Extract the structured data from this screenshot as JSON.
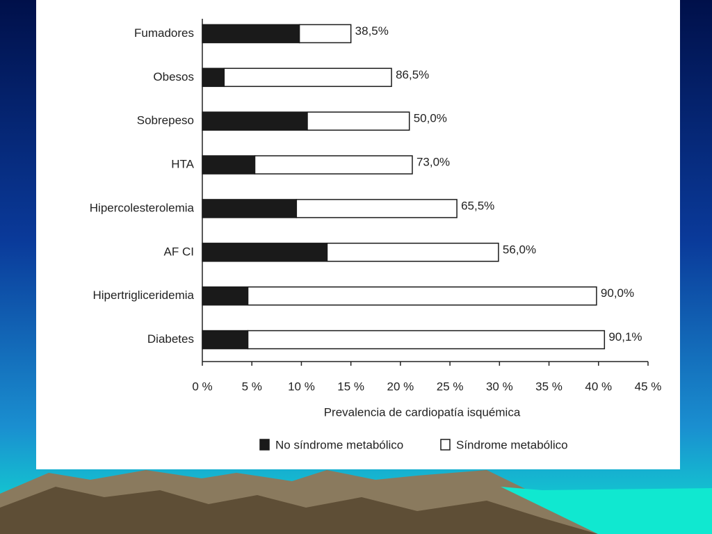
{
  "chart_data": {
    "type": "stacked-barh",
    "categories": [
      "Fumadores",
      "Obesos",
      "Sobrepeso",
      "HTA",
      "Hipercolesterolemia",
      "AF CI",
      "Hipertrigliceridemia",
      "Diabetes"
    ],
    "series": [
      {
        "name": "No síndrome metabólico",
        "color": "#1a1a1a",
        "values": [
          9.8,
          2.2,
          10.6,
          5.3,
          9.5,
          12.6,
          4.6,
          4.6
        ]
      },
      {
        "name": "Síndrome metabólico",
        "color": "#ffffff",
        "values": [
          5.2,
          16.9,
          10.3,
          15.9,
          16.2,
          17.3,
          35.2,
          36.0
        ]
      }
    ],
    "annotations": [
      "38,5%",
      "86,5%",
      "50,0%",
      "73,0%",
      "65,5%",
      "56,0%",
      "90,0%",
      "90,1%"
    ],
    "xlabel": "Prevalencia de cardiopatía isquémica",
    "xlim": [
      0,
      45
    ],
    "xticks": [
      {
        "value": 0,
        "label": "0 %"
      },
      {
        "value": 5,
        "label": "5 %"
      },
      {
        "value": 10,
        "label": "10 %"
      },
      {
        "value": 15,
        "label": "15 %"
      },
      {
        "value": 20,
        "label": "20 %"
      },
      {
        "value": 25,
        "label": "25 %"
      },
      {
        "value": 30,
        "label": "30 %"
      },
      {
        "value": 35,
        "label": "35 %"
      },
      {
        "value": 40,
        "label": "40 %"
      },
      {
        "value": 45,
        "label": "45 %"
      }
    ],
    "legend": "bottom"
  }
}
